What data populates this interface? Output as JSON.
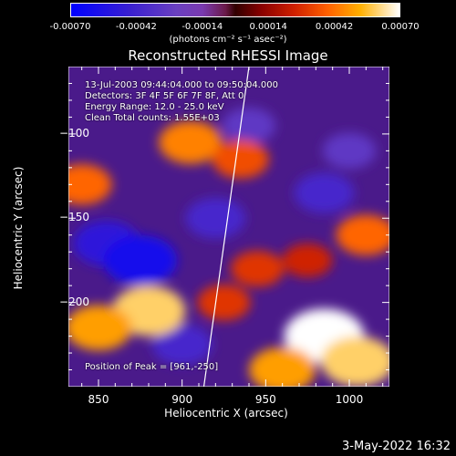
{
  "chart_data": {
    "type": "heatmap",
    "title": "Reconstructed RHESSI Image",
    "colorbar": {
      "ticks": [
        "-0.00070",
        "-0.00042",
        "-0.00014",
        "0.00014",
        "0.00042",
        "0.00070"
      ],
      "range": [
        -0.0007,
        0.0007
      ],
      "unit": "(photons cm⁻² s⁻¹ asec⁻²)"
    },
    "xlabel": "Heliocentric X (arcsec)",
    "ylabel": "Heliocentric Y (arcsec)",
    "xlim": [
      832,
      1024
    ],
    "ylim": [
      -250,
      -60
    ],
    "xticks": [
      850,
      900,
      950,
      1000
    ],
    "yticks": [
      -100,
      -150,
      -200
    ],
    "xtick_labels": [
      "850",
      "900",
      "950",
      "1000"
    ],
    "ytick_labels": [
      "−100",
      "−150",
      "−200"
    ],
    "annotations": [
      "13-Jul-2003 09:44:04.000 to 09:50:04.000",
      "Detectors: 3F 4F 5F 6F 7F 8F, Att 0",
      "Energy Range: 12.0 - 25.0 keV",
      "Clean     Total counts: 1.55E+03"
    ],
    "peak_label": "Position of Peak = [961,-250]",
    "limb_line": {
      "x": [
        913,
        940
      ],
      "y": [
        -250,
        -60
      ]
    },
    "hot_regions": [
      {
        "x": 840,
        "y": -130,
        "value": 0.0004
      },
      {
        "x": 905,
        "y": -105,
        "value": 0.00045
      },
      {
        "x": 935,
        "y": -115,
        "value": 0.00035
      },
      {
        "x": 880,
        "y": -205,
        "value": 0.0006
      },
      {
        "x": 850,
        "y": -215,
        "value": 0.0005
      },
      {
        "x": 925,
        "y": -200,
        "value": 0.0003
      },
      {
        "x": 985,
        "y": -220,
        "value": 0.0007
      },
      {
        "x": 1005,
        "y": -235,
        "value": 0.0006
      },
      {
        "x": 960,
        "y": -240,
        "value": 0.0005
      },
      {
        "x": 1010,
        "y": -160,
        "value": 0.0004
      },
      {
        "x": 945,
        "y": -180,
        "value": 0.0003
      },
      {
        "x": 975,
        "y": -175,
        "value": 0.00025
      }
    ],
    "cold_regions": [
      {
        "x": 855,
        "y": -165,
        "value": -0.0005
      },
      {
        "x": 875,
        "y": -175,
        "value": -0.0006
      },
      {
        "x": 920,
        "y": -150,
        "value": -0.0004
      },
      {
        "x": 985,
        "y": -135,
        "value": -0.0004
      },
      {
        "x": 1000,
        "y": -110,
        "value": -0.0003
      },
      {
        "x": 900,
        "y": -225,
        "value": -0.0004
      },
      {
        "x": 940,
        "y": -95,
        "value": -0.0003
      }
    ]
  },
  "timestamp": "3-May-2022 16:32"
}
